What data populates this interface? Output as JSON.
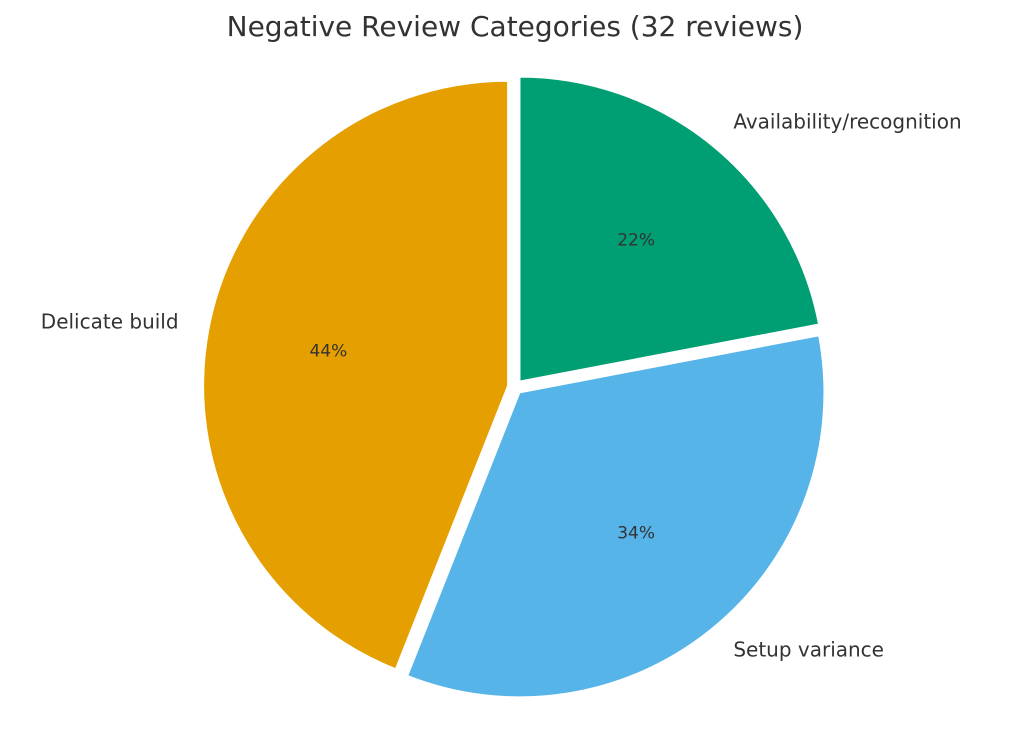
{
  "chart_data": {
    "type": "pie",
    "title": "Negative Review Categories (32 reviews)",
    "categories": [
      "Availability/recognition",
      "Setup variance",
      "Delicate build"
    ],
    "values": [
      22,
      34,
      44
    ],
    "value_labels": [
      "22%",
      "34%",
      "44%"
    ],
    "colors": [
      "#009E73",
      "#56B4E9",
      "#E69F00"
    ]
  }
}
